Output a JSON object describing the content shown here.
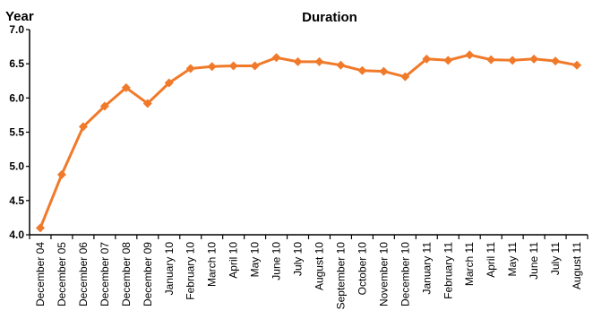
{
  "chart_data": {
    "type": "line",
    "title": "Duration",
    "ylabel": "Year",
    "xlabel": "",
    "ylim": [
      4.0,
      7.0
    ],
    "yticks": [
      "4.0",
      "4.5",
      "5.0",
      "5.5",
      "6.0",
      "6.5",
      "7.0"
    ],
    "grid": false,
    "color": "#f07a2a",
    "categories": [
      "December 04",
      "December 05",
      "December 06",
      "December 07",
      "December 08",
      "December 09",
      "January 10",
      "February 10",
      "March 10",
      "April 10",
      "May 10",
      "June 10",
      "July 10",
      "August 10",
      "September 10",
      "October 10",
      "November 10",
      "December 10",
      "January 11",
      "February 11",
      "March 11",
      "April 11",
      "May 11",
      "June 11",
      "July 11",
      "August 11"
    ],
    "series": [
      {
        "values": [
          4.1,
          4.88,
          5.58,
          5.88,
          6.15,
          5.92,
          6.22,
          6.43,
          6.46,
          6.47,
          6.47,
          6.59,
          6.53,
          6.53,
          6.48,
          6.4,
          6.39,
          6.31,
          6.57,
          6.55,
          6.63,
          6.56,
          6.55,
          6.57,
          6.54,
          6.48
        ]
      }
    ]
  }
}
